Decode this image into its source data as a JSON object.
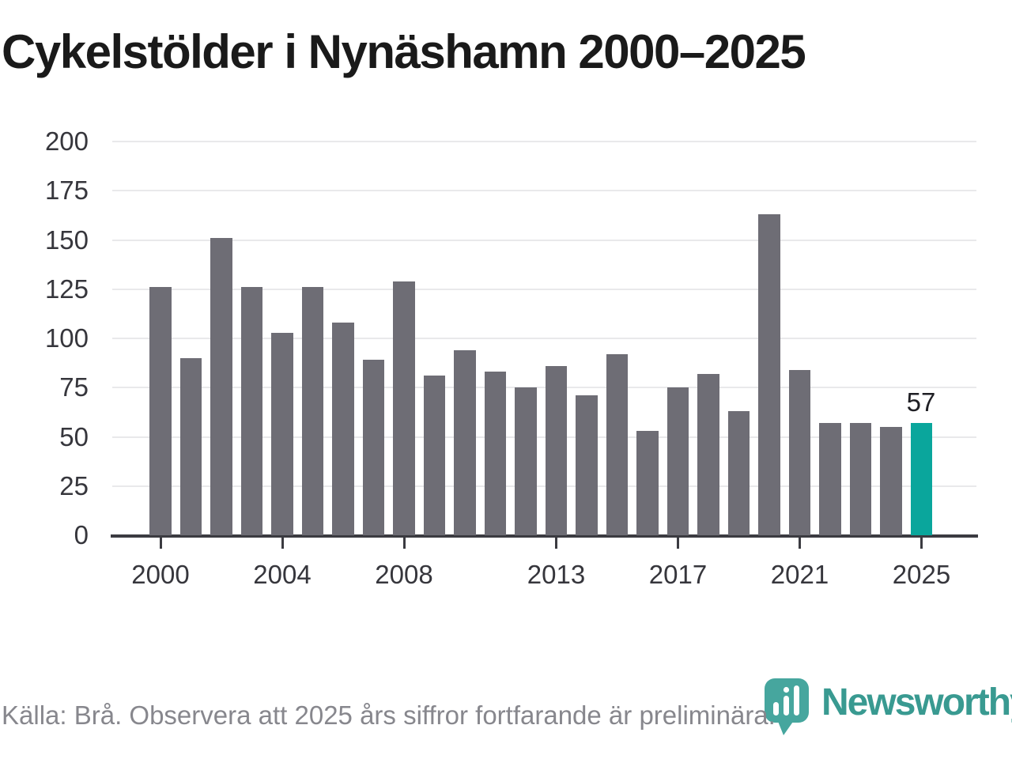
{
  "chart_data": {
    "type": "bar",
    "title": "Cykelstölder i Nynäshamn 2000–2025",
    "categories": [
      2000,
      2001,
      2002,
      2003,
      2004,
      2005,
      2006,
      2007,
      2008,
      2009,
      2010,
      2011,
      2012,
      2013,
      2014,
      2015,
      2016,
      2017,
      2018,
      2019,
      2020,
      2021,
      2022,
      2023,
      2024,
      2025
    ],
    "values": [
      126,
      90,
      151,
      126,
      103,
      126,
      108,
      89,
      129,
      81,
      94,
      83,
      75,
      86,
      71,
      92,
      53,
      75,
      82,
      63,
      163,
      84,
      57,
      57,
      55,
      57
    ],
    "xlabel": "",
    "ylabel": "",
    "ylim": [
      0,
      200
    ],
    "yticks": [
      0,
      25,
      50,
      75,
      100,
      125,
      150,
      175,
      200
    ],
    "xtick_labels": [
      "2000",
      "2004",
      "2008",
      "2013",
      "2017",
      "2021",
      "2025"
    ],
    "grid": "horizontal",
    "legend": "none",
    "highlight_index": 25,
    "value_label": {
      "index": 25,
      "text": "57"
    },
    "colors": {
      "bar": "#6e6d75",
      "highlight_bar": "#0aa69c",
      "gridline": "#e9e9eb",
      "axis": "#3b3b41",
      "tick_label": "#36363c",
      "title": "#1a1a1a"
    }
  },
  "footer": {
    "source_text": "Källa: Brå. Observera att 2025 års siffror fortfarande är preliminära."
  },
  "logo": {
    "text": "Newsworthy",
    "text_color": "#399a91",
    "icon_color": "#46a69e",
    "icon": "newsworthy-pin-barchart-icon"
  }
}
